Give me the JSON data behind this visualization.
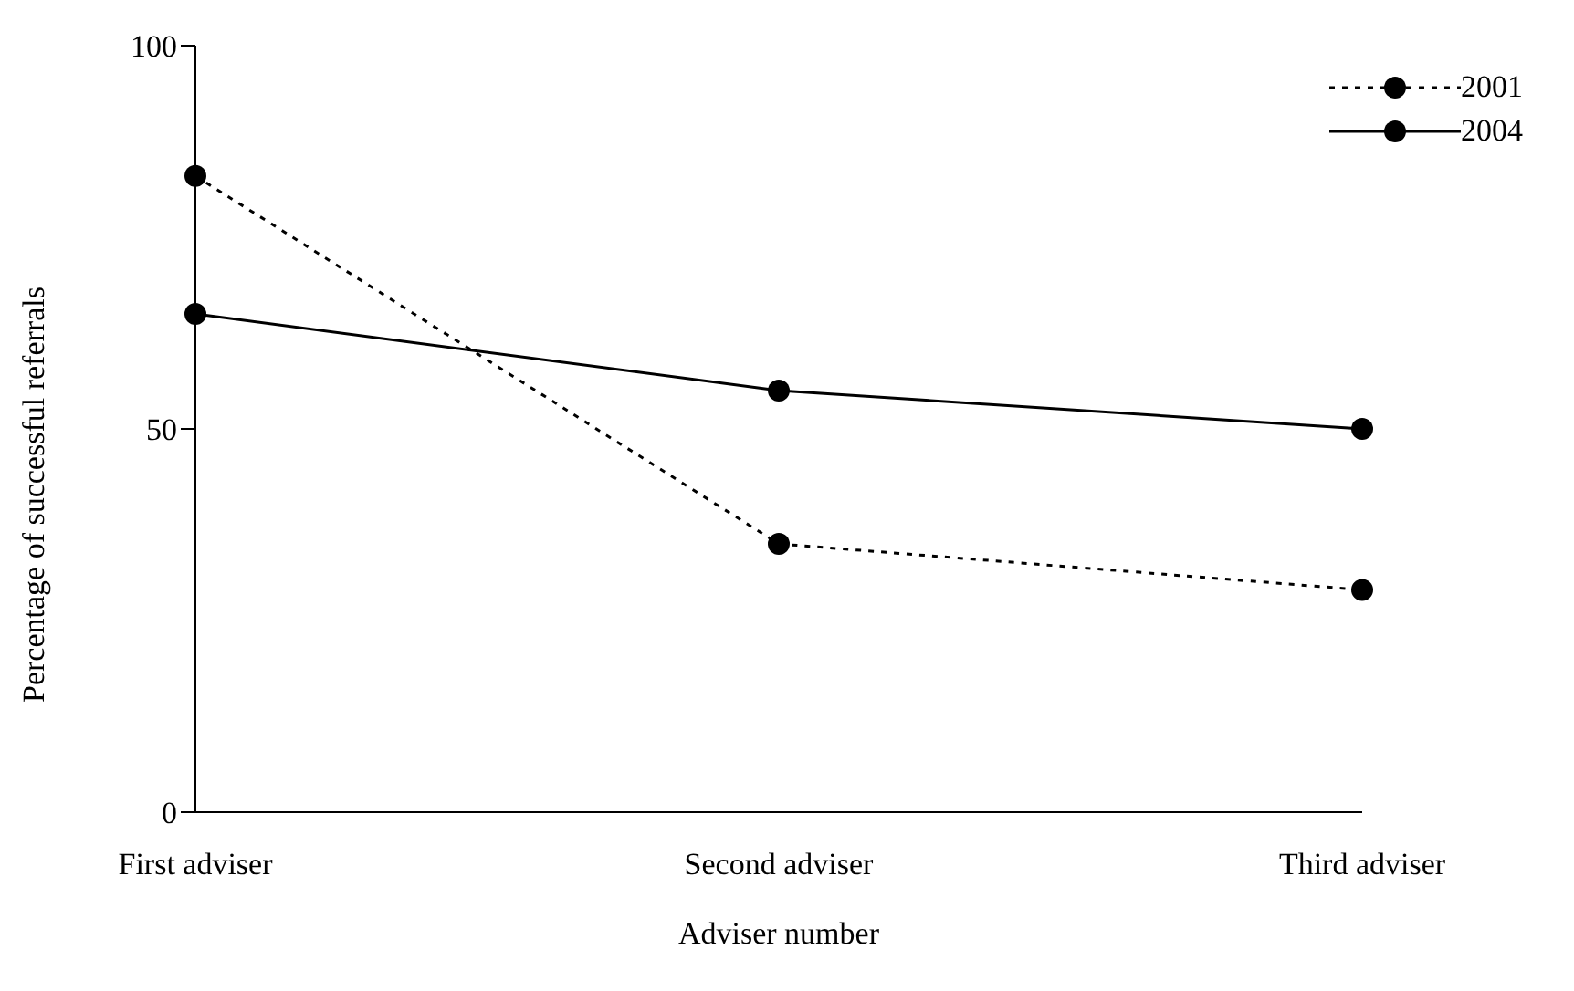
{
  "chart_data": {
    "type": "line",
    "xlabel": "Adviser number",
    "ylabel": "Percentage of successful referrals",
    "categories": [
      "First adviser",
      "Second adviser",
      "Third adviser"
    ],
    "series": [
      {
        "name": "2001",
        "color": "#000000",
        "values": [
          83,
          35,
          29
        ],
        "line_style": "dashed"
      },
      {
        "name": "2004",
        "color": "#000000",
        "values": [
          65,
          55,
          50
        ],
        "line_style": "solid"
      }
    ],
    "ylim": [
      0,
      100
    ],
    "yticks": [
      0,
      50,
      100
    ],
    "grid": false,
    "legend": "top right",
    "marker": "circle"
  }
}
